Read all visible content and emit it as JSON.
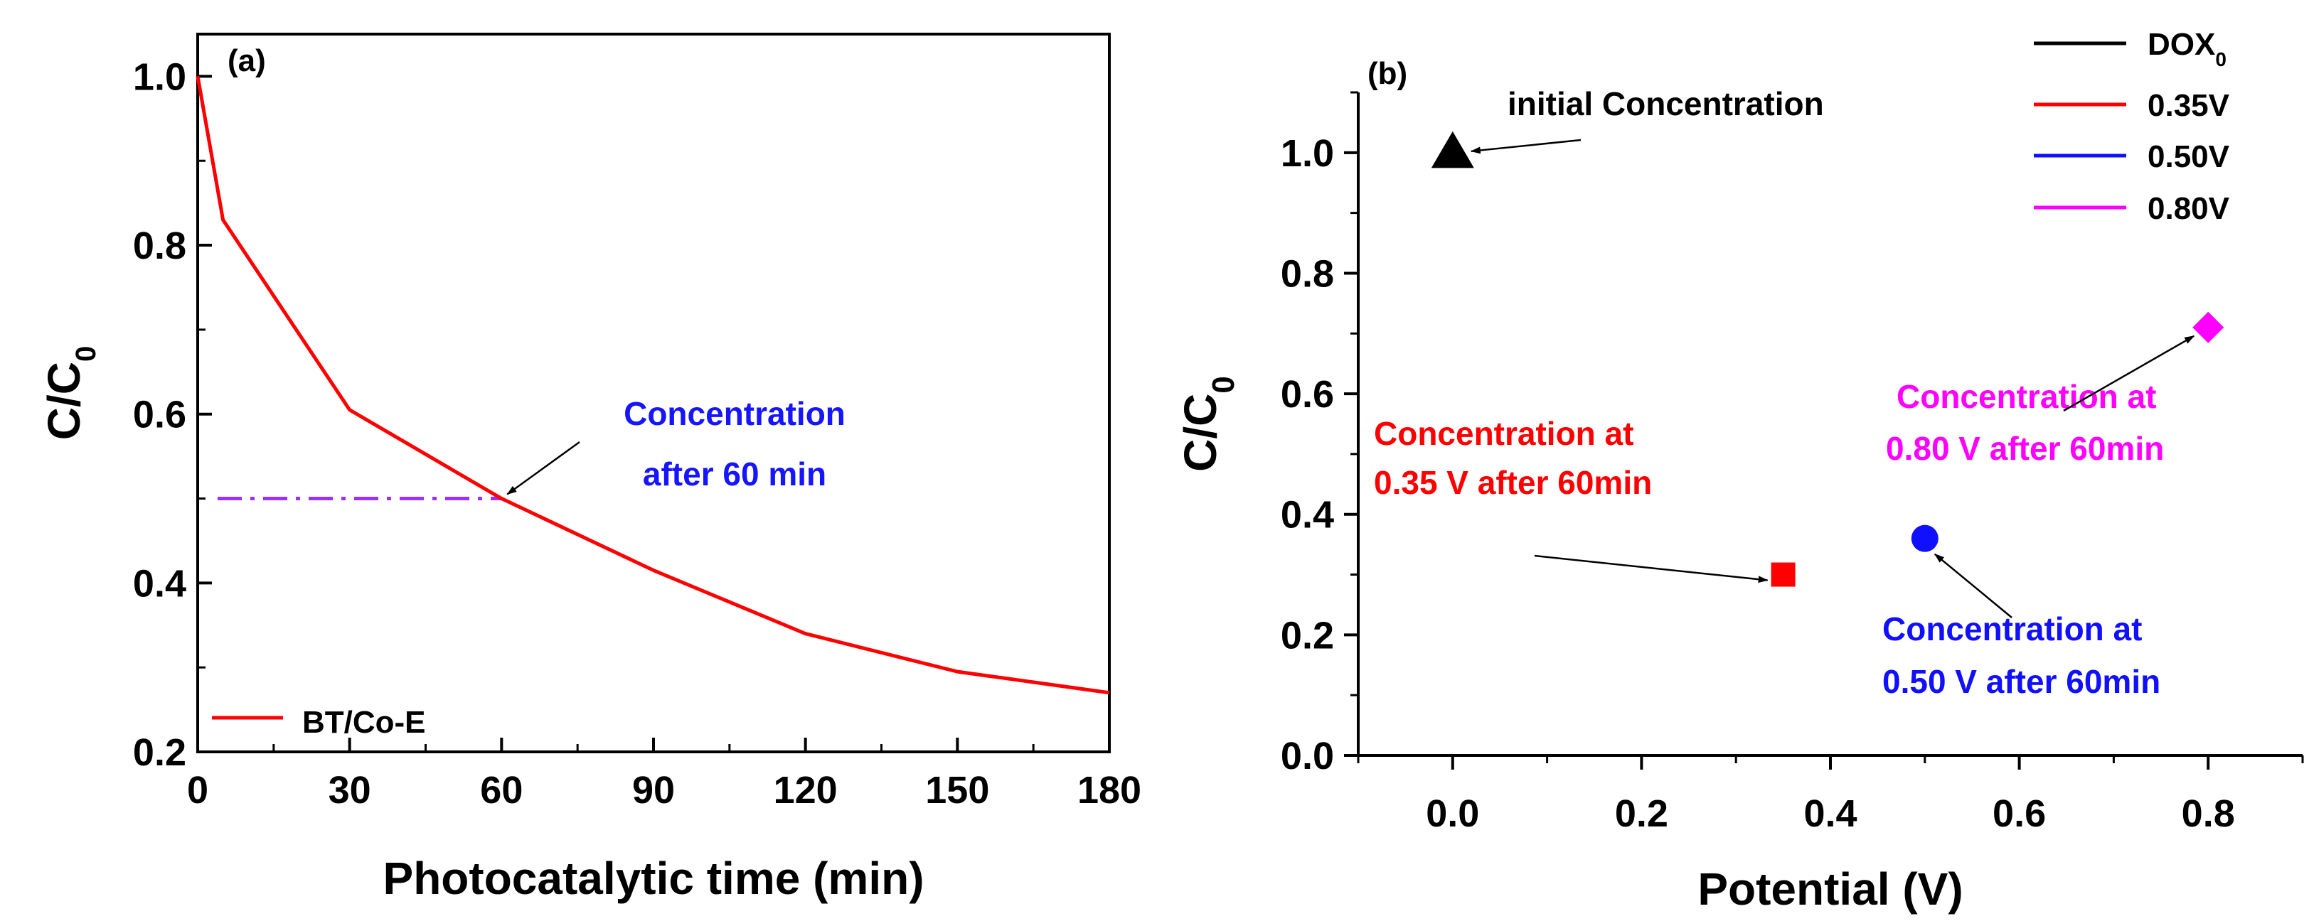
{
  "chart_data": [
    {
      "panel_label": "(a)",
      "type": "line",
      "xlabel": "Photocatalytic time (min)",
      "ylabel": "C/C",
      "ylabel_sub": "0",
      "xlim": [
        0,
        180
      ],
      "ylim": [
        0.2,
        1.05
      ],
      "xticks": [
        0,
        30,
        60,
        90,
        120,
        150,
        180
      ],
      "yticks": [
        0.2,
        0.4,
        0.6,
        0.8,
        1.0
      ],
      "xtick_labels": [
        "0",
        "30",
        "60",
        "90",
        "120",
        "150",
        "180"
      ],
      "ytick_labels": [
        "0.2",
        "0.4",
        "0.6",
        "0.8",
        "1.0"
      ],
      "series": [
        {
          "name": "BT/Co-E",
          "color": "#ff0000",
          "x": [
            0,
            5,
            30,
            60,
            90,
            120,
            150,
            180
          ],
          "y": [
            1.0,
            0.83,
            0.605,
            0.5,
            0.415,
            0.34,
            0.295,
            0.27
          ]
        }
      ],
      "reference_line": {
        "y": 0.5,
        "x": [
          0,
          60
        ],
        "color": "#9b30ff"
      },
      "annotations": [
        {
          "line1": "Concentration",
          "line2": "after 60 min",
          "color": "#1515ff",
          "points_to": {
            "x": 60,
            "y": 0.5
          }
        }
      ],
      "legend": {
        "position": "bottom-left",
        "entries": [
          "BT/Co-E"
        ]
      }
    },
    {
      "panel_label": "(b)",
      "type": "scatter",
      "xlabel": "Potential (V)",
      "ylabel": "C/C",
      "ylabel_sub": "0",
      "xlim": [
        -0.1,
        0.9
      ],
      "ylim": [
        0.0,
        1.1
      ],
      "xticks": [
        0.0,
        0.2,
        0.4,
        0.6,
        0.8
      ],
      "yticks": [
        0.0,
        0.2,
        0.4,
        0.6,
        0.8,
        1.0
      ],
      "xtick_labels": [
        "0.0",
        "0.2",
        "0.4",
        "0.6",
        "0.8"
      ],
      "ytick_labels": [
        "0.0",
        "0.2",
        "0.4",
        "0.6",
        "0.8",
        "1.0"
      ],
      "points": [
        {
          "name": "DOX",
          "name_sub": "0",
          "x": 0.0,
          "y": 1.0,
          "marker": "triangle",
          "color": "#000000"
        },
        {
          "name": "0.35V",
          "x": 0.35,
          "y": 0.3,
          "marker": "square",
          "color": "#ff0000"
        },
        {
          "name": "0.50V",
          "x": 0.5,
          "y": 0.36,
          "marker": "circle",
          "color": "#1010ff"
        },
        {
          "name": "0.80V",
          "x": 0.8,
          "y": 0.71,
          "marker": "diamond",
          "color": "#ff00ff"
        }
      ],
      "annotations": [
        {
          "line1": "initial Concentration",
          "color": "#000000",
          "points_to": {
            "x": 0.0,
            "y": 1.0
          }
        },
        {
          "line1": "Concentration at",
          "line2": "0.35 V after 60min",
          "color": "#ff0000",
          "points_to": {
            "x": 0.35,
            "y": 0.3
          }
        },
        {
          "line1": "Concentration at",
          "line2": "0.50 V after 60min",
          "color": "#1010ff",
          "points_to": {
            "x": 0.5,
            "y": 0.36
          }
        },
        {
          "line1": "Concentration at",
          "line2": "0.80 V after 60min",
          "color": "#ff00ff",
          "points_to": {
            "x": 0.8,
            "y": 0.71
          }
        }
      ],
      "legend": {
        "position": "top-right",
        "entries": [
          "DOX",
          "0.35V",
          "0.50V",
          "0.80V"
        ]
      }
    }
  ]
}
